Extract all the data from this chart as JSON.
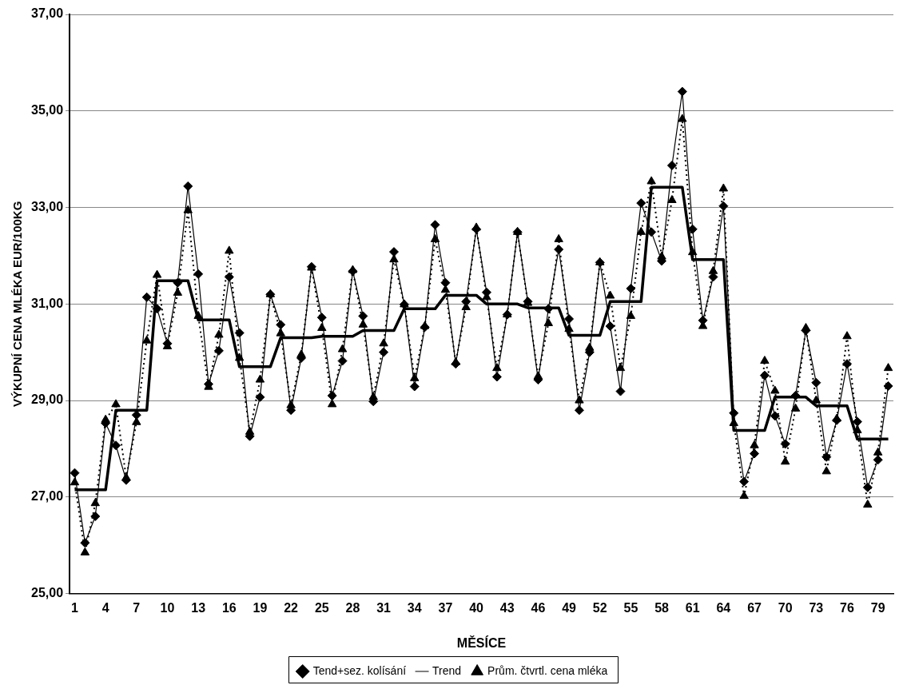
{
  "chart_data": {
    "type": "line",
    "xlabel": "MĚSÍCE",
    "ylabel": "VÝKUPNÍ CENA MLÉKA EUR/100KG",
    "categories": [
      "1",
      null,
      null,
      "4",
      null,
      null,
      "7",
      null,
      null,
      "10",
      null,
      null,
      "13",
      null,
      null,
      "16",
      null,
      null,
      "19",
      null,
      null,
      "22",
      null,
      null,
      "25",
      null,
      null,
      "28",
      null,
      null,
      "31",
      null,
      null,
      "34",
      null,
      null,
      "37",
      null,
      null,
      "40",
      null,
      null,
      "43",
      null,
      null,
      "46",
      null,
      null,
      "49",
      null,
      null,
      "52",
      null,
      null,
      "55",
      null,
      null,
      "58",
      null,
      null,
      "61",
      null,
      null,
      "64",
      null,
      null,
      "67",
      null,
      null,
      "70",
      null,
      null,
      "73",
      null,
      null,
      "76",
      null,
      null,
      "79",
      null
    ],
    "series": [
      {
        "name": "Tend+sez. kolísání",
        "color": "#000000",
        "marker": "diamond",
        "line_style": "solid",
        "values": [
          27.5,
          26.05,
          26.6,
          28.53,
          28.07,
          27.35,
          28.7,
          31.14,
          30.9,
          30.18,
          31.44,
          33.44,
          31.62,
          29.34,
          30.03,
          31.56,
          30.4,
          28.26,
          29.07,
          31.2,
          30.57,
          28.8,
          29.88,
          31.77,
          30.72,
          29.1,
          29.82,
          31.68,
          30.75,
          28.98,
          30.0,
          32.08,
          30.99,
          29.29,
          30.52,
          32.64,
          31.44,
          29.76,
          31.05,
          32.55,
          31.24,
          29.49,
          30.78,
          32.49,
          31.05,
          29.43,
          30.9,
          32.13,
          30.69,
          28.8,
          30.0,
          31.86,
          30.54,
          29.19,
          31.32,
          33.09,
          32.49,
          31.89,
          33.87,
          35.4,
          32.55,
          30.66,
          31.56,
          33.03,
          28.74,
          27.32,
          27.9,
          29.52,
          28.68,
          28.1,
          29.1,
          30.45,
          29.37,
          27.83,
          28.59,
          29.76,
          28.56,
          27.2,
          27.77,
          29.3
        ]
      },
      {
        "name": "Trend",
        "color": "#000000",
        "marker": "none",
        "line_style": "solid",
        "values": [
          27.15,
          27.15,
          27.15,
          27.15,
          28.8,
          28.8,
          28.8,
          28.8,
          31.48,
          31.48,
          31.48,
          31.48,
          30.67,
          30.67,
          30.67,
          30.67,
          29.7,
          29.7,
          29.7,
          29.7,
          30.3,
          30.3,
          30.3,
          30.3,
          30.33,
          30.33,
          30.33,
          30.33,
          30.45,
          30.45,
          30.45,
          30.45,
          30.9,
          30.9,
          30.9,
          30.9,
          31.18,
          31.18,
          31.18,
          31.18,
          31.0,
          31.0,
          31.0,
          31.0,
          30.92,
          30.92,
          30.92,
          30.92,
          30.35,
          30.35,
          30.35,
          30.35,
          31.05,
          31.05,
          31.05,
          31.05,
          33.42,
          33.42,
          33.42,
          33.42,
          31.92,
          31.92,
          31.92,
          31.92,
          28.38,
          28.38,
          28.38,
          28.38,
          29.07,
          29.07,
          29.07,
          29.07,
          28.89,
          28.89,
          28.89,
          28.89,
          28.2,
          28.2,
          28.2,
          28.2
        ]
      },
      {
        "name": "Prům. čtvrtl. cena mléka",
        "color": "#000000",
        "marker": "triangle",
        "line_style": "dotted",
        "values": [
          27.3,
          25.85,
          26.87,
          28.6,
          28.92,
          27.4,
          28.55,
          30.24,
          31.6,
          30.12,
          31.23,
          32.94,
          30.75,
          29.28,
          30.36,
          32.1,
          29.88,
          28.35,
          29.43,
          31.2,
          30.39,
          28.9,
          29.95,
          31.75,
          30.5,
          28.92,
          30.06,
          31.7,
          30.57,
          29.07,
          30.18,
          31.92,
          30.99,
          29.46,
          30.54,
          32.34,
          31.29,
          29.79,
          30.93,
          32.58,
          31.14,
          29.67,
          30.78,
          32.49,
          31.02,
          29.5,
          30.6,
          32.34,
          30.48,
          29.0,
          30.09,
          31.86,
          31.17,
          29.67,
          30.75,
          32.49,
          33.54,
          31.98,
          33.15,
          34.83,
          32.07,
          30.54,
          31.68,
          33.39,
          28.53,
          27.02,
          28.07,
          29.82,
          29.2,
          27.73,
          28.83,
          30.5,
          29.0,
          27.53,
          28.62,
          30.33,
          28.38,
          26.84,
          27.92,
          29.67
        ]
      }
    ],
    "ylim": [
      25,
      37
    ],
    "yticks": [
      {
        "value": 25,
        "label": "25,00"
      },
      {
        "value": 27,
        "label": "27,00"
      },
      {
        "value": 29,
        "label": "29,00"
      },
      {
        "value": 31,
        "label": "31,00"
      },
      {
        "value": 33,
        "label": "33,00"
      },
      {
        "value": 35,
        "label": "35,00"
      },
      {
        "value": 37,
        "label": "37,00"
      }
    ],
    "grid": "y",
    "legend": "bottom"
  }
}
